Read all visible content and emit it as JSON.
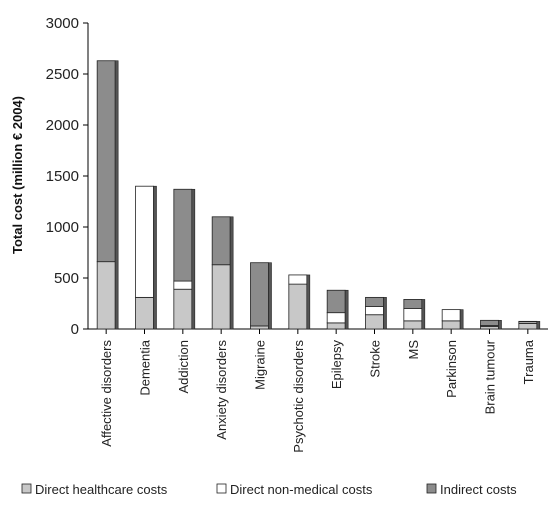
{
  "chart_data": {
    "type": "bar",
    "stacked": true,
    "ylabel": "Total cost (million € 2004)",
    "ylim": [
      0,
      3000
    ],
    "yticks": [
      0,
      500,
      1000,
      1500,
      2000,
      2500,
      3000
    ],
    "categories": [
      "Affective disorders",
      "Dementia",
      "Addiction",
      "Anxiety disorders",
      "Migraine",
      "Psychotic disorders",
      "Epilepsy",
      "Stroke",
      "MS",
      "Parkinson",
      "Brain tumour",
      "Trauma"
    ],
    "series": [
      {
        "name": "Direct healthcare costs",
        "color": "#c8c8c8",
        "values": [
          660,
          310,
          390,
          630,
          30,
          440,
          60,
          140,
          80,
          80,
          25,
          55
        ]
      },
      {
        "name": "Direct non-medical costs",
        "color": "#ffffff",
        "values": [
          0,
          1090,
          80,
          0,
          0,
          90,
          100,
          80,
          120,
          110,
          10,
          15
        ]
      },
      {
        "name": "Indirect costs",
        "color": "#8c8c8c",
        "values": [
          1970,
          0,
          900,
          470,
          620,
          0,
          220,
          90,
          90,
          0,
          50,
          5
        ]
      }
    ],
    "legend_position": "bottom",
    "grid": false
  }
}
